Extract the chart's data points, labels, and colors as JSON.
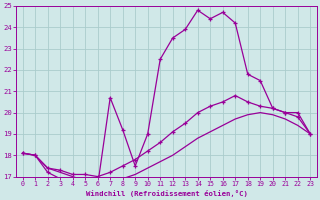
{
  "xlabel": "Windchill (Refroidissement éolien,°C)",
  "bg_color": "#d0e8e8",
  "line_color": "#990099",
  "grid_color": "#aacccc",
  "xlim": [
    -0.5,
    23.5
  ],
  "ylim": [
    17,
    25
  ],
  "yticks": [
    17,
    18,
    19,
    20,
    21,
    22,
    23,
    24,
    25
  ],
  "xticks": [
    0,
    1,
    2,
    3,
    4,
    5,
    6,
    7,
    8,
    9,
    10,
    11,
    12,
    13,
    14,
    15,
    16,
    17,
    18,
    19,
    20,
    21,
    22,
    23
  ],
  "curve1_x": [
    0,
    1,
    2,
    3,
    4,
    5,
    6,
    7,
    8,
    9,
    10,
    11,
    12,
    13,
    14,
    15,
    16,
    17,
    18,
    19,
    20,
    21,
    22,
    23
  ],
  "curve1_y": [
    18.1,
    18.0,
    17.2,
    16.9,
    16.7,
    16.6,
    16.6,
    20.7,
    19.2,
    17.5,
    19.0,
    22.5,
    23.5,
    23.9,
    24.8,
    24.4,
    24.7,
    24.2,
    21.8,
    21.5,
    20.2,
    20.0,
    20.0,
    19.0
  ],
  "curve2_x": [
    0,
    1,
    2,
    3,
    4,
    5,
    6,
    7,
    8,
    9,
    10,
    11,
    12,
    13,
    14,
    15,
    16,
    17,
    18,
    19,
    20,
    21,
    22,
    23
  ],
  "curve2_y": [
    18.1,
    18.0,
    17.4,
    17.3,
    17.1,
    17.1,
    17.0,
    17.2,
    17.5,
    17.8,
    18.2,
    18.6,
    19.1,
    19.5,
    20.0,
    20.3,
    20.5,
    20.8,
    20.5,
    20.3,
    20.2,
    20.0,
    19.8,
    19.0
  ],
  "curve3_x": [
    0,
    1,
    2,
    3,
    4,
    5,
    6,
    7,
    8,
    9,
    10,
    11,
    12,
    13,
    14,
    15,
    16,
    17,
    18,
    19,
    20,
    21,
    22,
    23
  ],
  "curve3_y": [
    18.1,
    18.0,
    17.4,
    17.2,
    17.0,
    16.8,
    16.6,
    16.7,
    16.9,
    17.1,
    17.4,
    17.7,
    18.0,
    18.4,
    18.8,
    19.1,
    19.4,
    19.7,
    19.9,
    20.0,
    19.9,
    19.7,
    19.4,
    19.0
  ]
}
